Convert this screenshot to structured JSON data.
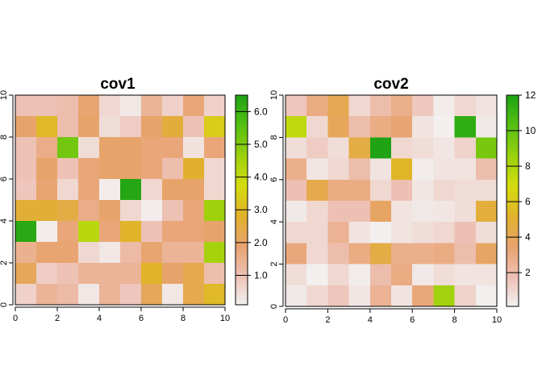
{
  "chart_data": [
    {
      "type": "heatmap",
      "title": "cov1",
      "xlim": [
        0,
        10
      ],
      "ylim": [
        0,
        10
      ],
      "x_ticks": [
        "0",
        "2",
        "4",
        "6",
        "8",
        "10"
      ],
      "y_ticks": [
        "0",
        "2",
        "4",
        "6",
        "8",
        "10"
      ],
      "legend": {
        "placement": "right",
        "range": [
          0.1,
          6.5
        ],
        "ticks": [
          1.0,
          2.0,
          3.0,
          4.0,
          5.0,
          6.0
        ],
        "tick_labels": [
          "1.0",
          "2.0",
          "3.0",
          "4.0",
          "5.0",
          "6.0"
        ]
      },
      "colors": [
        "#f2f2f2",
        "#eec0b4",
        "#e8a36f",
        "#e1b12c",
        "#d4dd0e",
        "#9bd00d",
        "#58c012",
        "#1fa314"
      ],
      "grid_values": [
        [
          1.0,
          1.0,
          1.1,
          1.9,
          0.6,
          0.3,
          1.4,
          0.7,
          1.8,
          0.7
        ],
        [
          2.0,
          3.0,
          1.1,
          2.0,
          0.5,
          0.8,
          2.0,
          2.6,
          1.0,
          3.4
        ],
        [
          1.0,
          1.6,
          5.2,
          0.5,
          2.0,
          2.0,
          1.8,
          1.8,
          0.4,
          1.8
        ],
        [
          1.0,
          2.0,
          1.0,
          1.8,
          2.0,
          2.0,
          1.8,
          1.1,
          2.8,
          0.6
        ],
        [
          0.9,
          1.9,
          0.6,
          1.8,
          0.2,
          6.4,
          0.6,
          2.0,
          2.0,
          0.6
        ],
        [
          2.7,
          2.7,
          2.5,
          1.6,
          2.0,
          0.6,
          0.2,
          1.0,
          1.8,
          4.6
        ],
        [
          6.3,
          0.2,
          1.8,
          4.2,
          1.8,
          2.9,
          1.0,
          1.8,
          1.8,
          2.0
        ],
        [
          1.5,
          1.9,
          1.9,
          0.6,
          0.3,
          1.2,
          1.9,
          1.4,
          1.4,
          4.5
        ],
        [
          2.2,
          0.8,
          1.0,
          1.4,
          1.4,
          1.4,
          2.9,
          2.0,
          2.4,
          1.1
        ],
        [
          0.7,
          1.4,
          1.2,
          0.3,
          1.4,
          0.9,
          2.2,
          0.3,
          2.4,
          3.0
        ]
      ]
    },
    {
      "type": "heatmap",
      "title": "cov2",
      "xlim": [
        0,
        10
      ],
      "ylim": [
        0,
        10
      ],
      "x_ticks": [
        "0",
        "2",
        "4",
        "6",
        "8",
        "10"
      ],
      "y_ticks": [
        "0",
        "2",
        "4",
        "6",
        "8",
        "10"
      ],
      "legend": {
        "placement": "right",
        "range": [
          0.1,
          12.0
        ],
        "ticks": [
          2,
          4,
          6,
          8,
          10,
          12
        ],
        "tick_labels": [
          "2",
          "4",
          "6",
          "8",
          "10",
          "12"
        ]
      },
      "colors": [
        "#f2f2f2",
        "#eec0b4",
        "#e8a36f",
        "#e1b12c",
        "#d4dd0e",
        "#9bd00d",
        "#58c012",
        "#1fa314"
      ],
      "grid_values": [
        [
          1.6,
          3.0,
          4.2,
          1.0,
          2.0,
          2.8,
          1.5,
          0.3,
          1.0,
          0.6
        ],
        [
          7.5,
          1.0,
          4.0,
          2.0,
          3.0,
          3.4,
          0.6,
          0.2,
          11.5,
          0.4
        ],
        [
          0.8,
          1.4,
          0.8,
          4.6,
          12.0,
          1.0,
          0.8,
          0.5,
          1.2,
          9.5
        ],
        [
          2.8,
          0.5,
          1.0,
          2.0,
          0.6,
          5.4,
          0.3,
          0.6,
          0.6,
          2.0
        ],
        [
          1.8,
          4.4,
          3.0,
          3.0,
          1.0,
          1.8,
          0.5,
          1.0,
          0.8,
          0.8
        ],
        [
          0.4,
          1.0,
          1.8,
          1.8,
          3.8,
          0.6,
          0.4,
          0.5,
          0.8,
          4.8
        ],
        [
          1.0,
          1.0,
          2.6,
          0.6,
          0.2,
          0.6,
          0.8,
          1.0,
          1.8,
          0.8
        ],
        [
          3.2,
          1.0,
          2.0,
          3.0,
          4.6,
          2.8,
          2.8,
          3.0,
          2.0,
          3.8
        ],
        [
          0.8,
          0.2,
          1.0,
          0.3,
          2.0,
          3.0,
          0.4,
          0.8,
          0.6,
          0.6
        ],
        [
          0.4,
          1.0,
          1.6,
          0.5,
          2.6,
          0.6,
          3.2,
          8.4,
          1.2,
          0.2
        ]
      ]
    }
  ]
}
